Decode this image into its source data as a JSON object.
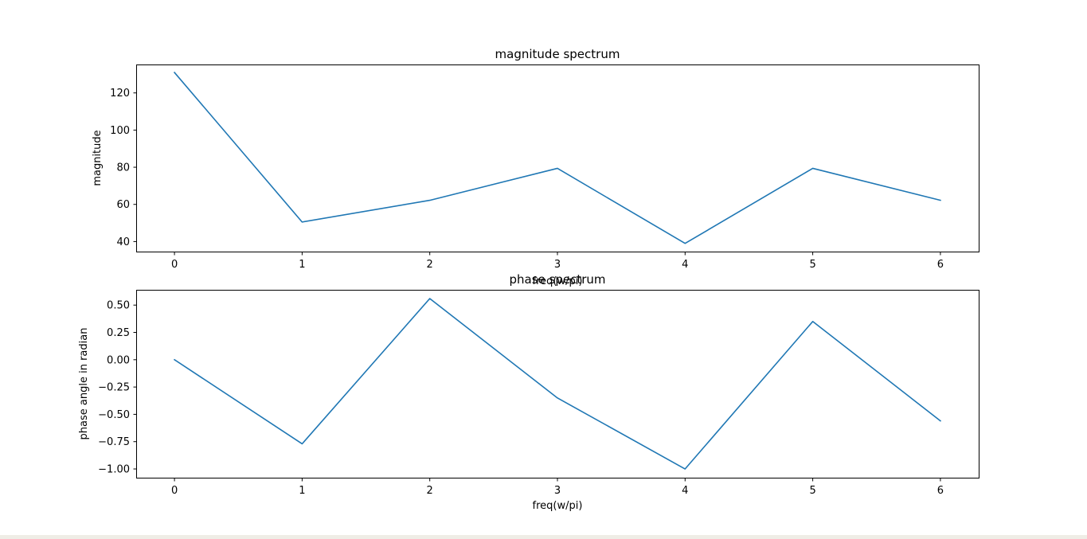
{
  "chart_data": [
    {
      "type": "line",
      "title": "magnitude spectrum",
      "xlabel": "freq(w/pi)",
      "ylabel": "magnitude",
      "x": [
        0,
        1,
        2,
        3,
        4,
        5,
        6
      ],
      "series": [
        {
          "values": [
            131,
            50.5,
            62.2,
            79.4,
            39,
            79.4,
            62.2
          ],
          "color": "#1f77b4"
        }
      ],
      "xlim": [
        -0.3,
        6.3
      ],
      "ylim": [
        34.6,
        135.3
      ],
      "xticks": [
        0,
        1,
        2,
        3,
        4,
        5,
        6
      ],
      "xtick_labels": [
        "0",
        "1",
        "2",
        "3",
        "4",
        "5",
        "6"
      ],
      "yticks": [
        40,
        60,
        80,
        100,
        120
      ],
      "ytick_labels": [
        "40",
        "60",
        "80",
        "100",
        "120"
      ],
      "grid": false
    },
    {
      "type": "line",
      "title": "phase spectrum",
      "xlabel": "freq(w/pi)",
      "ylabel": "phase angle in radian",
      "x": [
        0,
        1,
        2,
        3,
        4,
        5,
        6
      ],
      "series": [
        {
          "values": [
            0.0,
            -0.77,
            0.56,
            -0.35,
            -1.0,
            0.35,
            -0.56
          ],
          "color": "#1f77b4"
        }
      ],
      "xlim": [
        -0.3,
        6.3
      ],
      "ylim": [
        -1.08,
        0.64
      ],
      "xticks": [
        0,
        1,
        2,
        3,
        4,
        5,
        6
      ],
      "xtick_labels": [
        "0",
        "1",
        "2",
        "3",
        "4",
        "5",
        "6"
      ],
      "yticks": [
        -1.0,
        -0.75,
        -0.5,
        -0.25,
        0.0,
        0.25,
        0.5
      ],
      "ytick_labels": [
        "−1.00",
        "−0.75",
        "−0.50",
        "−0.25",
        "0.00",
        "0.25",
        "0.50"
      ],
      "grid": false
    }
  ]
}
